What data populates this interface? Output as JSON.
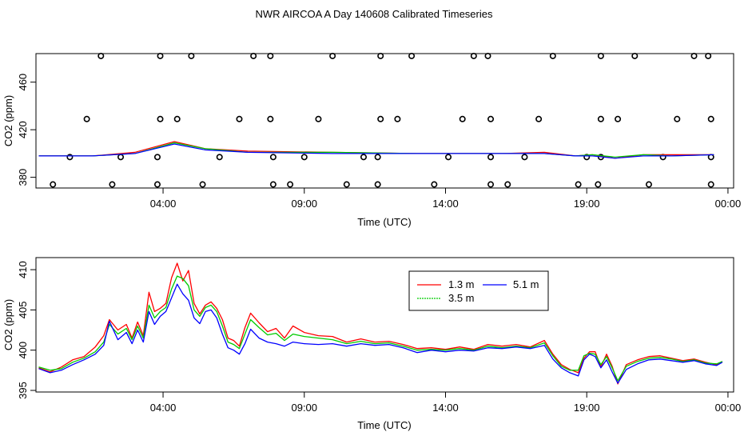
{
  "page_title": "NWR AIRCOA A  Day 140608  Calibrated Timeseries",
  "chart_data": [
    {
      "type": "scatter+line",
      "xlabel": "Time (UTC)",
      "ylabel": "CO2 (ppm)",
      "x_unit": "hours UTC",
      "xlim": [
        -0.5,
        24.2
      ],
      "ylim": [
        371,
        484
      ],
      "x_ticks": [
        {
          "value": 4,
          "label": "04:00"
        },
        {
          "value": 9,
          "label": "09:00"
        },
        {
          "value": 14,
          "label": "14:00"
        },
        {
          "value": 19,
          "label": "19:00"
        },
        {
          "value": 24,
          "label": "00:00"
        }
      ],
      "y_ticks": [
        {
          "value": 380,
          "label": "380"
        },
        {
          "value": 420,
          "label": "420"
        },
        {
          "value": 460,
          "label": "460"
        }
      ],
      "circle_series": [
        {
          "y": 482,
          "x": [
            1.8,
            3.9,
            5.0,
            7.2,
            7.8,
            10.0,
            11.7,
            12.8,
            15.0,
            15.5,
            17.8,
            19.5,
            20.7,
            22.8,
            23.3
          ]
        },
        {
          "y": 429,
          "x": [
            1.3,
            3.9,
            4.5,
            6.7,
            7.8,
            9.5,
            11.7,
            12.3,
            14.6,
            15.6,
            17.3,
            19.5,
            20.1,
            22.2,
            23.4
          ]
        },
        {
          "y": 397,
          "x": [
            0.7,
            2.5,
            3.8,
            6.0,
            7.9,
            9.0,
            11.1,
            11.6,
            14.1,
            15.6,
            16.8,
            19.0,
            19.5,
            21.7,
            23.4
          ]
        },
        {
          "y": 374,
          "x": [
            0.1,
            2.2,
            3.8,
            5.4,
            7.9,
            8.5,
            10.5,
            11.6,
            13.6,
            15.6,
            16.2,
            18.7,
            19.4,
            21.2,
            23.4
          ]
        }
      ],
      "series": [
        {
          "name": "1.3 m",
          "color": "#ff0000",
          "x": [
            -0.4,
            1.5,
            3.0,
            4.4,
            5.5,
            7.0,
            10.0,
            13.0,
            16.0,
            17.5,
            18.6,
            19.2,
            20.0,
            21.0,
            22.0,
            23.5
          ],
          "y": [
            398,
            398,
            401,
            410,
            404,
            402,
            401,
            400,
            400,
            401,
            398,
            399,
            396,
            399,
            399,
            399
          ]
        },
        {
          "name": "3.5 m",
          "color": "#00cc00",
          "x": [
            -0.4,
            1.5,
            3.0,
            4.4,
            5.5,
            7.0,
            10.0,
            13.0,
            16.0,
            17.5,
            18.6,
            19.2,
            20.0,
            21.0,
            22.0,
            23.5
          ],
          "y": [
            398,
            398,
            400,
            409,
            404,
            401,
            401,
            400,
            400,
            400,
            398,
            399,
            397,
            399,
            398,
            399
          ]
        },
        {
          "name": "5.1 m",
          "color": "#0000ff",
          "x": [
            -0.4,
            1.5,
            3.0,
            4.4,
            5.5,
            7.0,
            10.0,
            13.0,
            16.0,
            17.5,
            18.6,
            19.2,
            20.0,
            21.0,
            22.0,
            23.5
          ],
          "y": [
            398,
            398,
            400,
            408,
            403,
            401,
            400,
            400,
            400,
            400,
            398,
            398,
            396,
            398,
            398,
            399
          ]
        }
      ]
    },
    {
      "type": "line",
      "xlabel": "Time (UTC)",
      "ylabel": "CO2 (ppm)",
      "x_unit": "hours UTC",
      "xlim": [
        -0.5,
        24.2
      ],
      "ylim": [
        394.8,
        411.5
      ],
      "x_ticks": [
        {
          "value": 4,
          "label": "04:00"
        },
        {
          "value": 9,
          "label": "09:00"
        },
        {
          "value": 14,
          "label": "14:00"
        },
        {
          "value": 19,
          "label": "19:00"
        },
        {
          "value": 24,
          "label": "00:00"
        }
      ],
      "y_ticks": [
        {
          "value": 395,
          "label": "395"
        },
        {
          "value": 400,
          "label": "400"
        },
        {
          "value": 405,
          "label": "405"
        },
        {
          "value": 410,
          "label": "410"
        }
      ],
      "legend": {
        "placement": "top-center",
        "entries": [
          "1.3 m",
          "3.5 m",
          "5.1 m"
        ]
      },
      "series": [
        {
          "name": "1.3 m",
          "color": "#ff0000",
          "x": [
            -0.4,
            0.0,
            0.4,
            0.8,
            1.2,
            1.6,
            1.9,
            2.1,
            2.4,
            2.7,
            2.9,
            3.1,
            3.3,
            3.5,
            3.7,
            3.9,
            4.1,
            4.3,
            4.5,
            4.7,
            4.9,
            5.1,
            5.3,
            5.5,
            5.7,
            5.9,
            6.1,
            6.3,
            6.5,
            6.7,
            6.9,
            7.1,
            7.4,
            7.7,
            8.0,
            8.3,
            8.6,
            9.0,
            9.5,
            10.0,
            10.5,
            11.0,
            11.5,
            12.0,
            12.5,
            13.0,
            13.5,
            14.0,
            14.5,
            15.0,
            15.5,
            16.0,
            16.5,
            17.0,
            17.5,
            17.8,
            18.1,
            18.4,
            18.7,
            18.9,
            19.1,
            19.3,
            19.5,
            19.7,
            19.9,
            20.1,
            20.4,
            20.8,
            21.2,
            21.6,
            22.0,
            22.4,
            22.8,
            23.2,
            23.6,
            23.8
          ],
          "y": [
            397.8,
            397.3,
            397.9,
            398.8,
            399.2,
            400.4,
            401.8,
            403.8,
            402.5,
            403.2,
            401.5,
            403.5,
            401.8,
            407.2,
            404.8,
            405.2,
            405.8,
            409.0,
            410.8,
            408.6,
            409.9,
            405.8,
            404.5,
            405.6,
            406.0,
            405.2,
            403.8,
            401.5,
            401.2,
            400.5,
            402.8,
            404.6,
            403.4,
            402.3,
            402.7,
            401.5,
            403.0,
            402.2,
            401.8,
            401.7,
            401.0,
            401.4,
            401.0,
            401.1,
            400.7,
            400.2,
            400.3,
            400.1,
            400.4,
            400.1,
            400.7,
            400.5,
            400.7,
            400.4,
            401.2,
            399.5,
            398.2,
            397.6,
            397.2,
            399.0,
            399.8,
            399.8,
            397.9,
            399.5,
            398.0,
            395.8,
            398.2,
            398.8,
            399.2,
            399.3,
            399.0,
            398.7,
            398.9,
            398.5,
            398.2,
            398.6
          ]
        },
        {
          "name": "3.5 m",
          "color": "#00cc00",
          "x": [
            -0.4,
            0.0,
            0.4,
            0.8,
            1.2,
            1.6,
            1.9,
            2.1,
            2.4,
            2.7,
            2.9,
            3.1,
            3.3,
            3.5,
            3.7,
            3.9,
            4.1,
            4.3,
            4.5,
            4.7,
            4.9,
            5.1,
            5.3,
            5.5,
            5.7,
            5.9,
            6.1,
            6.3,
            6.5,
            6.7,
            6.9,
            7.1,
            7.4,
            7.7,
            8.0,
            8.3,
            8.6,
            9.0,
            9.5,
            10.0,
            10.5,
            11.0,
            11.5,
            12.0,
            12.5,
            13.0,
            13.5,
            14.0,
            14.5,
            15.0,
            15.5,
            16.0,
            16.5,
            17.0,
            17.5,
            17.8,
            18.1,
            18.4,
            18.7,
            18.9,
            19.1,
            19.3,
            19.5,
            19.7,
            19.9,
            20.1,
            20.4,
            20.8,
            21.2,
            21.6,
            22.0,
            22.4,
            22.8,
            23.2,
            23.6,
            23.8
          ],
          "y": [
            397.9,
            397.5,
            397.7,
            398.5,
            399.0,
            399.8,
            401.0,
            403.2,
            402.0,
            402.7,
            401.3,
            403.0,
            401.5,
            405.6,
            404.0,
            404.8,
            405.3,
            407.6,
            409.2,
            408.9,
            408.0,
            405.0,
            404.2,
            405.3,
            405.6,
            404.8,
            403.0,
            401.0,
            400.7,
            400.2,
            402.0,
            403.8,
            402.8,
            401.9,
            402.1,
            401.2,
            402.0,
            401.7,
            401.5,
            401.3,
            400.8,
            401.1,
            400.8,
            400.9,
            400.5,
            400.0,
            400.1,
            400.0,
            400.2,
            400.0,
            400.5,
            400.3,
            400.5,
            400.3,
            400.9,
            399.3,
            398.0,
            397.5,
            397.5,
            399.3,
            399.6,
            399.5,
            398.2,
            399.2,
            397.8,
            396.2,
            398.0,
            398.6,
            399.0,
            399.1,
            398.9,
            398.6,
            398.8,
            398.4,
            398.3,
            398.6
          ]
        },
        {
          "name": "5.1 m",
          "color": "#0000ff",
          "x": [
            -0.4,
            0.0,
            0.4,
            0.8,
            1.2,
            1.6,
            1.9,
            2.1,
            2.4,
            2.7,
            2.9,
            3.1,
            3.3,
            3.5,
            3.7,
            3.9,
            4.1,
            4.3,
            4.5,
            4.7,
            4.9,
            5.1,
            5.3,
            5.5,
            5.7,
            5.9,
            6.1,
            6.3,
            6.5,
            6.7,
            6.9,
            7.1,
            7.4,
            7.7,
            8.0,
            8.3,
            8.6,
            9.0,
            9.5,
            10.0,
            10.5,
            11.0,
            11.5,
            12.0,
            12.5,
            13.0,
            13.5,
            14.0,
            14.5,
            15.0,
            15.5,
            16.0,
            16.5,
            17.0,
            17.5,
            17.8,
            18.1,
            18.4,
            18.7,
            18.9,
            19.1,
            19.3,
            19.5,
            19.7,
            19.9,
            20.1,
            20.4,
            20.8,
            21.2,
            21.6,
            22.0,
            22.4,
            22.8,
            23.2,
            23.6,
            23.8
          ],
          "y": [
            397.7,
            397.2,
            397.5,
            398.2,
            398.8,
            399.5,
            400.6,
            403.6,
            401.3,
            402.2,
            400.8,
            402.5,
            401.0,
            404.8,
            403.2,
            404.2,
            404.8,
            406.5,
            408.2,
            407.0,
            406.2,
            404.0,
            403.3,
            404.8,
            405.0,
            404.0,
            402.0,
            400.3,
            400.0,
            399.5,
            400.8,
            402.6,
            401.5,
            401.0,
            400.8,
            400.5,
            401.0,
            400.8,
            400.7,
            400.8,
            400.5,
            400.8,
            400.6,
            400.7,
            400.3,
            399.7,
            400.0,
            399.8,
            400.0,
            399.9,
            400.3,
            400.2,
            400.4,
            400.2,
            400.6,
            398.9,
            397.8,
            397.2,
            396.8,
            398.8,
            399.5,
            399.2,
            397.8,
            398.8,
            397.3,
            395.9,
            397.6,
            398.3,
            398.8,
            398.9,
            398.7,
            398.5,
            398.7,
            398.3,
            398.1,
            398.5
          ]
        }
      ]
    }
  ]
}
